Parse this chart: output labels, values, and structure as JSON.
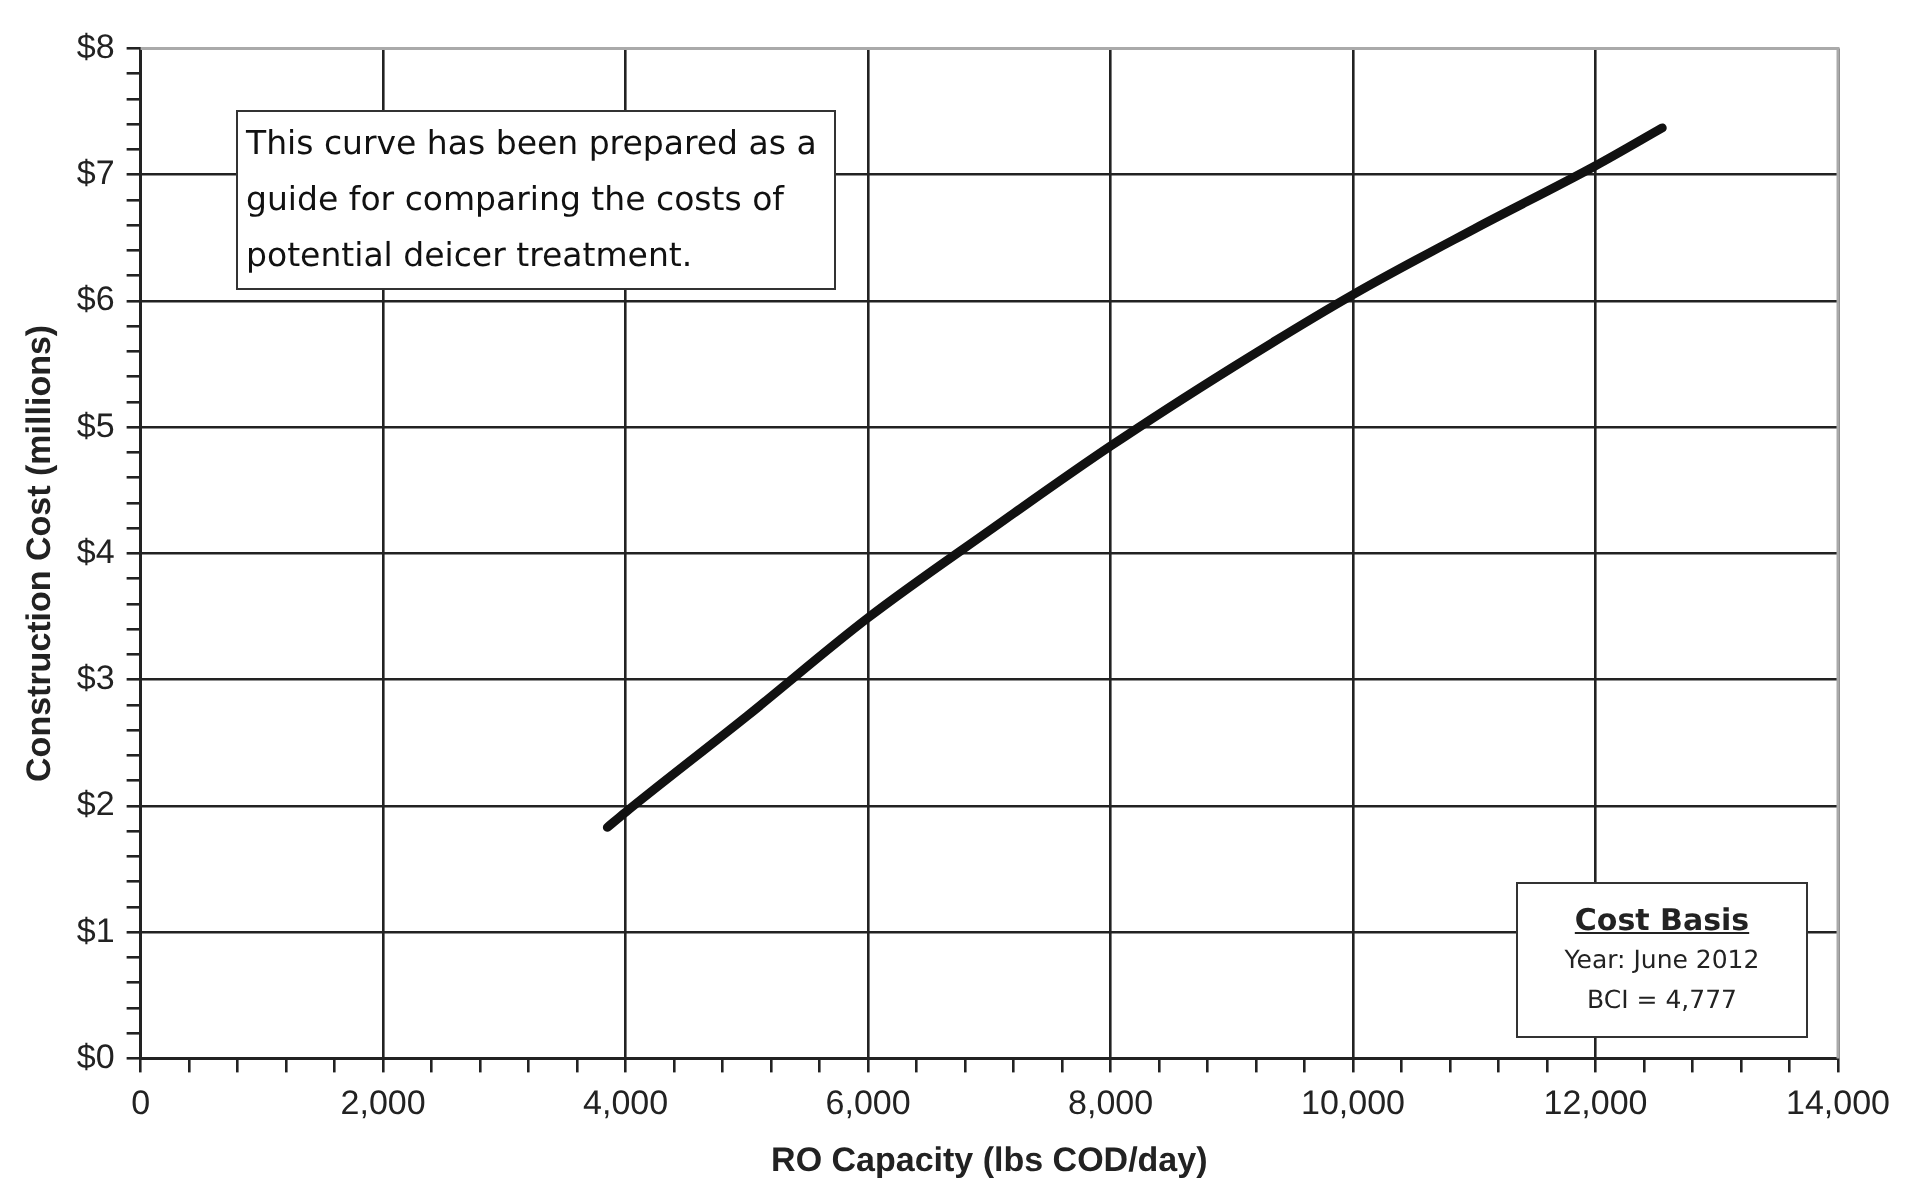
{
  "chart_data": {
    "type": "line",
    "xlabel": "RO Capacity (lbs COD/day)",
    "ylabel": "Construction Cost (millions)",
    "x": [
      3850,
      4000,
      5000,
      6000,
      7000,
      8000,
      9000,
      10000,
      11000,
      12000,
      12550
    ],
    "series": [
      {
        "color": "#111111",
        "values": [
          1.83,
          1.95,
          2.71,
          3.49,
          4.18,
          4.85,
          5.47,
          6.05,
          6.57,
          7.07,
          7.37
        ]
      }
    ],
    "xlim": [
      0,
      14000
    ],
    "xticks": [
      0,
      {
        "value": 400,
        "label": null
      },
      {
        "value": 800,
        "label": null
      },
      {
        "value": 1200,
        "label": null
      },
      {
        "value": 1600,
        "label": null
      },
      {
        "value": 2000,
        "label": "2,000"
      },
      {
        "value": 2400,
        "label": null
      },
      {
        "value": 2800,
        "label": null
      },
      {
        "value": 3200,
        "label": null
      },
      {
        "value": 3600,
        "label": null
      },
      {
        "value": 4000,
        "label": "4,000"
      },
      {
        "value": 4400,
        "label": null
      },
      {
        "value": 4800,
        "label": null
      },
      {
        "value": 5200,
        "label": null
      },
      {
        "value": 5600,
        "label": null
      },
      {
        "value": 6000,
        "label": "6,000"
      },
      {
        "value": 6400,
        "label": null
      },
      {
        "value": 6800,
        "label": null
      },
      {
        "value": 7200,
        "label": null
      },
      {
        "value": 7600,
        "label": null
      },
      {
        "value": 8000,
        "label": "8,000"
      },
      {
        "value": 8400,
        "label": null
      },
      {
        "value": 8800,
        "label": null
      },
      {
        "value": 9200,
        "label": null
      },
      {
        "value": 9600,
        "label": null
      },
      {
        "value": 10000,
        "label": "10,000"
      },
      {
        "value": 10400,
        "label": null
      },
      {
        "value": 10800,
        "label": null
      },
      {
        "value": 11200,
        "label": null
      },
      {
        "value": 11600,
        "label": null
      },
      {
        "value": 12000,
        "label": "12,000"
      },
      {
        "value": 12400,
        "label": null
      },
      {
        "value": 12800,
        "label": null
      },
      {
        "value": 13200,
        "label": null
      },
      {
        "value": 13600,
        "label": null
      },
      {
        "value": 14000,
        "label": "14,000"
      }
    ],
    "ylim": [
      0,
      8
    ],
    "yticks": [
      {
        "value": 0,
        "label": "$0"
      },
      {
        "value": 0.2,
        "label": null
      },
      {
        "value": 0.4,
        "label": null
      },
      {
        "value": 0.6,
        "label": null
      },
      {
        "value": 0.8,
        "label": null
      },
      {
        "value": 1,
        "label": "$1"
      },
      {
        "value": 1.2,
        "label": null
      },
      {
        "value": 1.4,
        "label": null
      },
      {
        "value": 1.6,
        "label": null
      },
      {
        "value": 1.8,
        "label": null
      },
      {
        "value": 2,
        "label": "$2"
      },
      {
        "value": 2.2,
        "label": null
      },
      {
        "value": 2.4,
        "label": null
      },
      {
        "value": 2.6,
        "label": null
      },
      {
        "value": 2.8,
        "label": null
      },
      {
        "value": 3,
        "label": "$3"
      },
      {
        "value": 3.2,
        "label": null
      },
      {
        "value": 3.4,
        "label": null
      },
      {
        "value": 3.6,
        "label": null
      },
      {
        "value": 3.8,
        "label": null
      },
      {
        "value": 4,
        "label": "$4"
      },
      {
        "value": 4.2,
        "label": null
      },
      {
        "value": 4.4,
        "label": null
      },
      {
        "value": 4.6,
        "label": null
      },
      {
        "value": 4.8,
        "label": null
      },
      {
        "value": 5,
        "label": "$5"
      },
      {
        "value": 5.2,
        "label": null
      },
      {
        "value": 5.4,
        "label": null
      },
      {
        "value": 5.6,
        "label": null
      },
      {
        "value": 5.8,
        "label": null
      },
      {
        "value": 6,
        "label": "$6"
      },
      {
        "value": 6.2,
        "label": null
      },
      {
        "value": 6.4,
        "label": null
      },
      {
        "value": 6.6,
        "label": null
      },
      {
        "value": 6.8,
        "label": null
      },
      {
        "value": 7,
        "label": "$7"
      },
      {
        "value": 7.2,
        "label": null
      },
      {
        "value": 7.4,
        "label": null
      },
      {
        "value": 7.6,
        "label": null
      },
      {
        "value": 7.8,
        "label": null
      },
      {
        "value": 8,
        "label": "$8"
      }
    ],
    "grid": true,
    "legend": false,
    "marker": "none",
    "line_style": "solid",
    "annotations": [
      "This curve has been prepared as a guide for comparing the costs of potential deicer treatment.",
      "Cost Basis",
      "Year: June 2012",
      "BCI = 4,777"
    ]
  }
}
